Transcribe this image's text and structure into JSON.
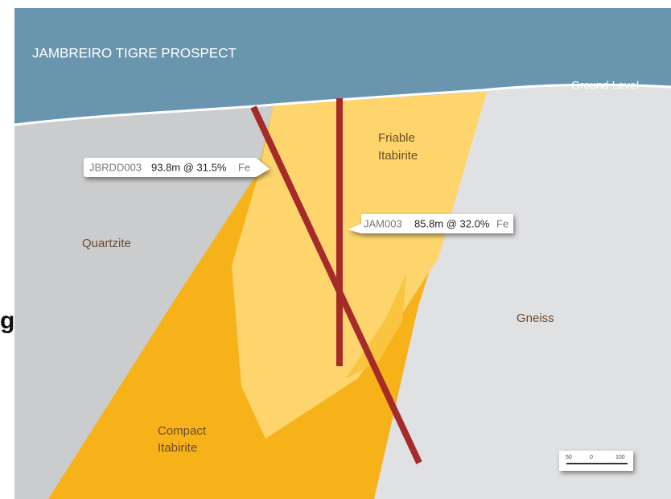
{
  "edge_text": "g",
  "title": "JAMBREIRO TIGRE PROSPECT",
  "ground_level": "Ground Level",
  "units": {
    "friable": [
      "Friable",
      "Itabirite"
    ],
    "quartzite": "Quartzite",
    "gneiss": "Gneiss",
    "compact": [
      "Compact",
      "Itabirite"
    ]
  },
  "callouts": [
    {
      "hole": "JBRDD003",
      "grade": "93.8m @ 31.5%",
      "element": "Fe"
    },
    {
      "hole": "JAM003",
      "grade": "85.8m @ 32.0%",
      "element": "Fe"
    }
  ],
  "scale_bar": [
    "50",
    "0",
    "100"
  ]
}
